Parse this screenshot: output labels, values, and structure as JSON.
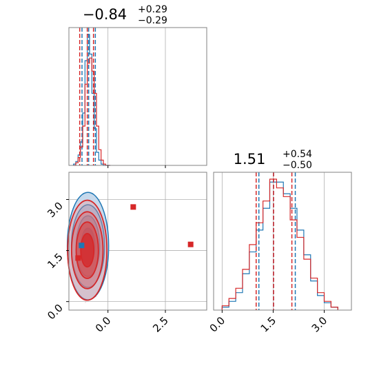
{
  "chart_data": {
    "type": "corner",
    "colors": {
      "blue": "#1f77b4",
      "red": "#d62728",
      "grid": "#b0b0b0",
      "frame": "#808080"
    },
    "panels": [
      {
        "id": "marginal-x",
        "type": "histogram",
        "title": {
          "value": "−0.84",
          "sup": "+0.29",
          "sub": "−0.29"
        },
        "xlim": [
          -1.7,
          4.3
        ],
        "xticks": [
          0.0,
          2.5
        ],
        "grid": true,
        "bins": [
          -1.5,
          -1.4,
          -1.3,
          -1.2,
          -1.1,
          -1.0,
          -0.9,
          -0.8,
          -0.7,
          -0.6,
          -0.5,
          -0.4,
          -0.3,
          -0.2,
          -0.1,
          0.0
        ],
        "series": [
          {
            "name": "blue",
            "values": [
              1,
              3,
              8,
              18,
              40,
              80,
              100,
              85,
              55,
              28,
              10,
              4,
              1,
              0,
              0,
              0
            ],
            "quantiles": [
              -1.13,
              -0.84,
              -0.55
            ]
          },
          {
            "name": "red",
            "values": [
              0,
              2,
              6,
              14,
              30,
              62,
              78,
              82,
              72,
              55,
              30,
              12,
              4,
              1,
              0,
              0
            ],
            "quantiles": [
              -1.23,
              -0.9,
              -0.63
            ]
          }
        ]
      },
      {
        "id": "joint",
        "type": "scatter-contour",
        "xlim": [
          -1.7,
          4.3
        ],
        "ylim": [
          -0.25,
          3.8
        ],
        "xticks": [
          "0.0",
          "2.5"
        ],
        "yticks": [
          "0.0",
          "1.5",
          "3.0"
        ],
        "grid": true,
        "points": [
          {
            "color": "red",
            "x": 1.1,
            "y": 2.78
          },
          {
            "color": "red",
            "x": 3.6,
            "y": 1.68
          },
          {
            "color": "red",
            "x": -1.3,
            "y": 1.28
          },
          {
            "color": "blue",
            "x": -1.15,
            "y": 1.65
          }
        ]
      },
      {
        "id": "marginal-y",
        "type": "histogram",
        "title": {
          "value": "1.51",
          "sup": "+0.54",
          "sub": "−0.50"
        },
        "xlim": [
          -0.25,
          3.8
        ],
        "xticks": [
          "0.0",
          "1.5",
          "3.0"
        ],
        "grid": true,
        "bins": [
          0.0,
          0.2,
          0.4,
          0.6,
          0.8,
          1.0,
          1.2,
          1.4,
          1.6,
          1.8,
          2.0,
          2.2,
          2.4,
          2.6,
          2.8,
          3.0,
          3.2
        ],
        "series": [
          {
            "name": "blue",
            "values": [
              2,
              6,
              12,
              25,
              40,
              55,
              70,
              88,
              88,
              80,
              70,
              55,
              38,
              20,
              10,
              5,
              2
            ],
            "quantiles": [
              1.08,
              1.51,
              2.15
            ]
          },
          {
            "name": "red",
            "values": [
              3,
              8,
              15,
              28,
              45,
              60,
              75,
              90,
              84,
              78,
              62,
              50,
              35,
              22,
              12,
              6,
              2
            ],
            "quantiles": [
              1.0,
              1.51,
              2.05
            ]
          }
        ]
      }
    ]
  }
}
